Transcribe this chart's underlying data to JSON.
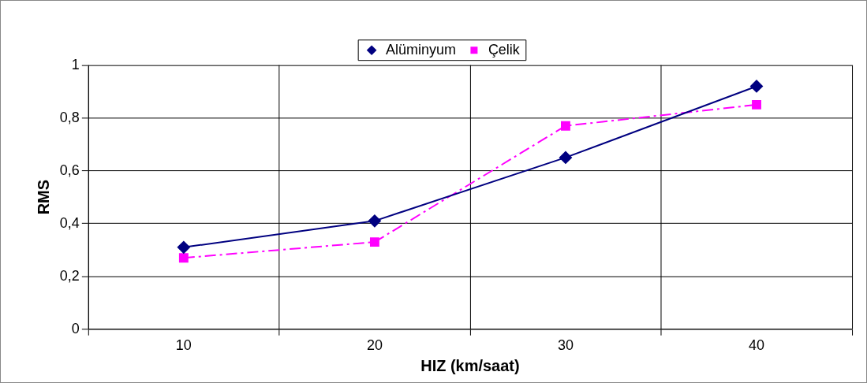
{
  "chart_data": {
    "type": "line",
    "xlabel": "HIZ (km/saat)",
    "ylabel": "RMS",
    "categories": [
      "10",
      "20",
      "30",
      "40"
    ],
    "series": [
      {
        "name": "Alüminyum",
        "color": "#000080",
        "values": [
          0.31,
          0.41,
          0.65,
          0.92
        ],
        "marker": "diamond",
        "line_style": "solid"
      },
      {
        "name": "Çelik",
        "color": "#ff00ff",
        "values": [
          0.27,
          0.33,
          0.77,
          0.85
        ],
        "marker": "square",
        "line_style": "dashed"
      }
    ],
    "ylim": [
      0,
      1
    ],
    "yticks": [
      0,
      {
        "value": 0.2,
        "label": "0,2"
      },
      {
        "value": 0.4,
        "label": "0,4"
      },
      {
        "value": 0.6,
        "label": "0,6"
      },
      {
        "value": 0.8,
        "label": "0,8"
      },
      1
    ],
    "grid": true,
    "legend": "top"
  }
}
